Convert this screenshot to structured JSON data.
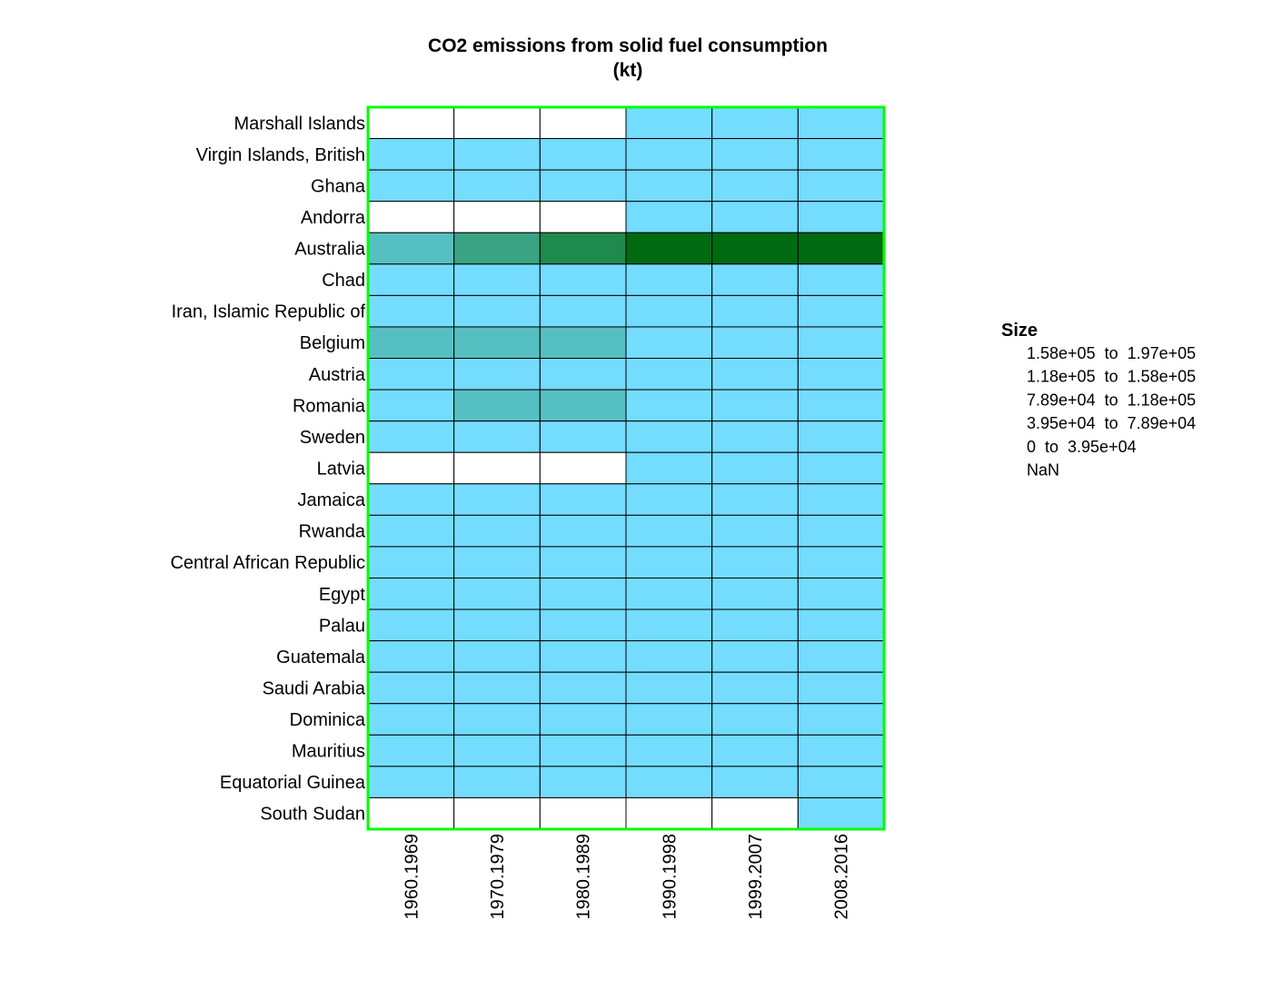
{
  "chart_data": {
    "type": "heatmap",
    "title": "CO2 emissions from solid fuel consumption\n(kt)",
    "title_lines": [
      "CO2 emissions from solid fuel consumption",
      "(kt)"
    ],
    "columns": [
      "1960.1969",
      "1970.1979",
      "1980.1989",
      "1990.1998",
      "1999.2007",
      "2008.2016"
    ],
    "rows": [
      "Marshall Islands",
      "Virgin Islands, British",
      "Ghana",
      "Andorra",
      "Australia",
      "Chad",
      "Iran, Islamic Republic of",
      "Belgium",
      "Austria",
      "Romania",
      "Sweden",
      "Latvia",
      "Jamaica",
      "Rwanda",
      "Central African Republic",
      "Egypt",
      "Palau",
      "Guatemala",
      "Saudi Arabia",
      "Dominica",
      "Mauritius",
      "Equatorial Guinea",
      "South Sudan"
    ],
    "bins_comment": "cell value = legend bin index: 0 = NaN, 1 = 0 to 3.95e+04, 2 = 3.95e+04 to 7.89e+04, 3 = 7.89e+04 to 1.18e+05, 4 = 1.18e+05 to 1.58e+05, 5 = 1.58e+05 to 1.97e+05",
    "cells": [
      [
        0,
        0,
        0,
        1,
        1,
        1
      ],
      [
        1,
        1,
        1,
        1,
        1,
        1
      ],
      [
        1,
        1,
        1,
        1,
        1,
        1
      ],
      [
        0,
        0,
        0,
        1,
        1,
        1
      ],
      [
        2,
        3,
        4,
        5,
        5,
        5
      ],
      [
        1,
        1,
        1,
        1,
        1,
        1
      ],
      [
        1,
        1,
        1,
        1,
        1,
        1
      ],
      [
        2,
        2,
        2,
        1,
        1,
        1
      ],
      [
        1,
        1,
        1,
        1,
        1,
        1
      ],
      [
        1,
        2,
        2,
        1,
        1,
        1
      ],
      [
        1,
        1,
        1,
        1,
        1,
        1
      ],
      [
        0,
        0,
        0,
        1,
        1,
        1
      ],
      [
        1,
        1,
        1,
        1,
        1,
        1
      ],
      [
        1,
        1,
        1,
        1,
        1,
        1
      ],
      [
        1,
        1,
        1,
        1,
        1,
        1
      ],
      [
        1,
        1,
        1,
        1,
        1,
        1
      ],
      [
        1,
        1,
        1,
        1,
        1,
        1
      ],
      [
        1,
        1,
        1,
        1,
        1,
        1
      ],
      [
        1,
        1,
        1,
        1,
        1,
        1
      ],
      [
        1,
        1,
        1,
        1,
        1,
        1
      ],
      [
        1,
        1,
        1,
        1,
        1,
        1
      ],
      [
        1,
        1,
        1,
        1,
        1,
        1
      ],
      [
        0,
        0,
        0,
        0,
        0,
        1
      ]
    ],
    "legend": {
      "title": "Size",
      "placement": "right",
      "items": [
        {
          "label": "1.58e+05  to  1.97e+05",
          "bin": 5
        },
        {
          "label": "1.18e+05  to  1.58e+05",
          "bin": 4
        },
        {
          "label": "7.89e+04  to  1.18e+05",
          "bin": 3
        },
        {
          "label": "3.95e+04  to  7.89e+04",
          "bin": 2
        },
        {
          "label": "0  to  3.95e+04",
          "bin": 1
        },
        {
          "label": "NaN",
          "bin": 0
        }
      ]
    },
    "colors": {
      "bins": [
        "#ffffff",
        "#74dcff",
        "#56bfc1",
        "#3aa383",
        "#1f8a4d",
        "#006a12"
      ],
      "cell_border": "#000000",
      "frame": "#00ff00"
    }
  }
}
